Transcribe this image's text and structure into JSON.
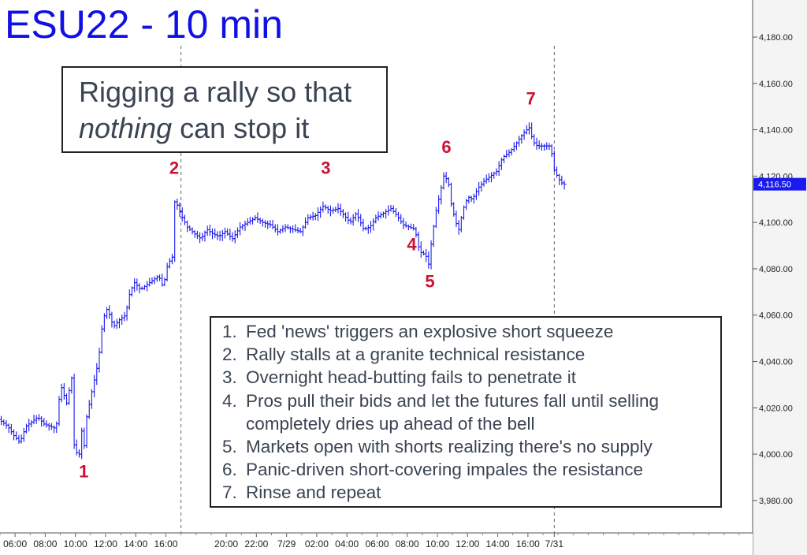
{
  "title": "ESU22 - 10 min",
  "callout": {
    "line1": "Rigging a rally so that",
    "line2_em": "nothing",
    "line2_rest": " can stop it"
  },
  "notes": [
    {
      "num": "1.",
      "text": "Fed 'news' triggers an explosive short squeeze"
    },
    {
      "num": "2.",
      "text": "Rally stalls at a granite technical resistance"
    },
    {
      "num": "3.",
      "text": "Overnight head-butting fails to penetrate it"
    },
    {
      "num": "4.",
      "text": "Pros pull their bids and let the futures fall until selling completely dries up ahead of the bell"
    },
    {
      "num": "5.",
      "text": "Markets open with shorts realizing there's no supply"
    },
    {
      "num": "6.",
      "text": "Panic-driven short-covering impales the resistance"
    },
    {
      "num": "7.",
      "text": "Rinse and repeat"
    }
  ],
  "colors": {
    "title": "#1010e6",
    "price_bars": "#1a1aee",
    "wave_labels": "#cc1133",
    "axis_panel": "#f5f5f5",
    "last_price_tag": "#1a1aee"
  },
  "chart_data": {
    "type": "ohlc",
    "instrument": "ESU22",
    "interval": "10 min",
    "ylim": [
      3966,
      4196
    ],
    "y_ticks": [
      3980,
      4000,
      4020,
      4040,
      4060,
      4080,
      4100,
      4120,
      4140,
      4160,
      4180
    ],
    "y_tick_labels": [
      "3,980.00",
      "4,000.00",
      "4,020.00",
      "4,040.00",
      "4,060.00",
      "4,080.00",
      "4,100.00",
      "4,120.00",
      "4,140.00",
      "4,160.00",
      "4,180.00"
    ],
    "x_range": [
      5.0,
      54.9
    ],
    "x_ticks": [
      {
        "x": 6,
        "label": "06:00"
      },
      {
        "x": 8,
        "label": "08:00"
      },
      {
        "x": 10,
        "label": "10:00"
      },
      {
        "x": 12,
        "label": "12:00"
      },
      {
        "x": 14,
        "label": "14:00"
      },
      {
        "x": 16,
        "label": "16:00"
      },
      {
        "x": 20,
        "label": "20:00"
      },
      {
        "x": 22,
        "label": "22:00"
      },
      {
        "x": 24,
        "label": "7/29"
      },
      {
        "x": 26,
        "label": "02:00"
      },
      {
        "x": 28,
        "label": "04:00"
      },
      {
        "x": 30,
        "label": "06:00"
      },
      {
        "x": 32,
        "label": "08:00"
      },
      {
        "x": 34,
        "label": "10:00"
      },
      {
        "x": 36,
        "label": "12:00"
      },
      {
        "x": 38,
        "label": "14:00"
      },
      {
        "x": 40,
        "label": "16:00"
      },
      {
        "x": 41.75,
        "label": "7/31"
      }
    ],
    "session_breaks": [
      17.0,
      41.75
    ],
    "last_price": 4116.5,
    "last_price_label": "4,116.50",
    "price_path": [
      [
        5.0,
        4015
      ],
      [
        5.6,
        4012
      ],
      [
        6.0,
        4008
      ],
      [
        6.4,
        4005
      ],
      [
        6.8,
        4012
      ],
      [
        7.2,
        4014
      ],
      [
        7.6,
        4016
      ],
      [
        8.0,
        4013
      ],
      [
        8.4,
        4012
      ],
      [
        8.8,
        4011
      ],
      [
        9.1,
        4030
      ],
      [
        9.5,
        4022
      ],
      [
        9.9,
        4035
      ],
      [
        10.0,
        4004
      ],
      [
        10.3,
        3998
      ],
      [
        10.5,
        4010
      ],
      [
        10.6,
        3998
      ],
      [
        10.8,
        4015
      ],
      [
        11.2,
        4028
      ],
      [
        11.6,
        4040
      ],
      [
        11.9,
        4058
      ],
      [
        12.2,
        4063
      ],
      [
        12.6,
        4055
      ],
      [
        13.0,
        4058
      ],
      [
        13.4,
        4060
      ],
      [
        13.7,
        4070
      ],
      [
        14.0,
        4074
      ],
      [
        14.4,
        4071
      ],
      [
        14.8,
        4073
      ],
      [
        15.2,
        4075
      ],
      [
        15.6,
        4077
      ],
      [
        15.9,
        4072
      ],
      [
        16.2,
        4082
      ],
      [
        16.5,
        4085
      ],
      [
        16.65,
        4109
      ],
      [
        16.8,
        4108
      ],
      [
        17.1,
        4103
      ],
      [
        17.5,
        4098
      ],
      [
        18.0,
        4095
      ],
      [
        18.4,
        4093
      ],
      [
        18.8,
        4097
      ],
      [
        19.2,
        4095
      ],
      [
        19.6,
        4094
      ],
      [
        20.0,
        4096
      ],
      [
        20.5,
        4093
      ],
      [
        21.0,
        4098
      ],
      [
        21.5,
        4100
      ],
      [
        22.0,
        4102
      ],
      [
        22.5,
        4100
      ],
      [
        23.0,
        4099
      ],
      [
        23.5,
        4096
      ],
      [
        24.0,
        4098
      ],
      [
        24.5,
        4097
      ],
      [
        25.0,
        4096
      ],
      [
        25.5,
        4102
      ],
      [
        26.0,
        4103
      ],
      [
        26.5,
        4107
      ],
      [
        27.0,
        4105
      ],
      [
        27.5,
        4106
      ],
      [
        27.9,
        4103
      ],
      [
        28.3,
        4100
      ],
      [
        28.7,
        4104
      ],
      [
        29.2,
        4097
      ],
      [
        29.6,
        4098
      ],
      [
        30.0,
        4102
      ],
      [
        30.5,
        4104
      ],
      [
        31.0,
        4106
      ],
      [
        31.4,
        4103
      ],
      [
        31.8,
        4099
      ],
      [
        32.2,
        4098
      ],
      [
        32.6,
        4097
      ],
      [
        32.8,
        4090
      ],
      [
        33.0,
        4087
      ],
      [
        33.3,
        4086
      ],
      [
        33.5,
        4082
      ],
      [
        33.75,
        4095
      ],
      [
        34.0,
        4105
      ],
      [
        34.3,
        4114
      ],
      [
        34.5,
        4120
      ],
      [
        34.8,
        4118
      ],
      [
        35.0,
        4108
      ],
      [
        35.3,
        4100
      ],
      [
        35.5,
        4097
      ],
      [
        35.8,
        4106
      ],
      [
        36.1,
        4111
      ],
      [
        36.4,
        4110
      ],
      [
        36.8,
        4115
      ],
      [
        37.2,
        4118
      ],
      [
        37.6,
        4120
      ],
      [
        38.0,
        4122
      ],
      [
        38.4,
        4128
      ],
      [
        38.8,
        4130
      ],
      [
        39.2,
        4133
      ],
      [
        39.6,
        4137
      ],
      [
        40.0,
        4140
      ],
      [
        40.2,
        4141
      ],
      [
        40.4,
        4135
      ],
      [
        40.7,
        4133
      ],
      [
        41.0,
        4133
      ],
      [
        41.3,
        4133
      ],
      [
        41.6,
        4133
      ],
      [
        41.8,
        4123
      ],
      [
        42.1,
        4119
      ],
      [
        42.4,
        4116.5
      ]
    ],
    "wave_labels": [
      {
        "label": "1",
        "x": 10.55,
        "y": 3990
      },
      {
        "label": "2",
        "x": 16.55,
        "y": 4121
      },
      {
        "label": "3",
        "x": 26.6,
        "y": 4121
      },
      {
        "label": "4",
        "x": 32.3,
        "y": 4088
      },
      {
        "label": "5",
        "x": 33.5,
        "y": 4072
      },
      {
        "label": "6",
        "x": 34.6,
        "y": 4130
      },
      {
        "label": "7",
        "x": 40.2,
        "y": 4151
      }
    ]
  }
}
